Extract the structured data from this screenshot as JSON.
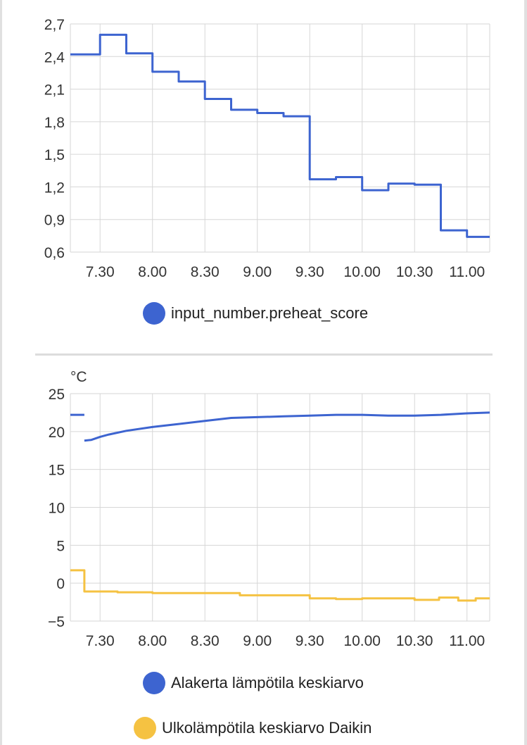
{
  "charts": [
    {
      "legend": [
        {
          "label": "input_number.preheat_score",
          "color": "#3d64d0"
        }
      ]
    },
    {
      "unit_label": "°C",
      "legend": [
        {
          "label": "Alakerta lämpötila keskiarvo",
          "color": "#3d64d0"
        },
        {
          "label": "Ulkolämpötila keskiarvo Daikin",
          "color": "#f5c242"
        }
      ]
    }
  ],
  "chart_data": [
    {
      "type": "line",
      "step": true,
      "xlabel": "",
      "ylabel": "",
      "x_ticks": [
        "7.30",
        "8.00",
        "8.30",
        "9.00",
        "9.30",
        "10.00",
        "10.30",
        "11.00"
      ],
      "y_ticks": [
        "0,6",
        "0,9",
        "1,2",
        "1,5",
        "1,8",
        "2,1",
        "2,4",
        "2,7"
      ],
      "xlim": [
        "07:13",
        "11:13"
      ],
      "ylim": [
        0.6,
        2.7
      ],
      "grid": true,
      "legend_position": "bottom",
      "series": [
        {
          "name": "input_number.preheat_score",
          "color": "#3d64d0",
          "x": [
            "07:13",
            "07:30",
            "07:45",
            "08:00",
            "08:15",
            "08:30",
            "08:45",
            "09:00",
            "09:15",
            "09:30",
            "09:45",
            "10:00",
            "10:15",
            "10:30",
            "10:45",
            "11:00",
            "11:13"
          ],
          "y": [
            2.42,
            2.6,
            2.43,
            2.26,
            2.17,
            2.01,
            1.91,
            1.88,
            1.85,
            1.27,
            1.29,
            1.17,
            1.23,
            1.22,
            0.8,
            0.74,
            0.74
          ]
        }
      ]
    },
    {
      "type": "line",
      "xlabel": "",
      "ylabel": "°C",
      "x_ticks": [
        "7.30",
        "8.00",
        "8.30",
        "9.00",
        "9.30",
        "10.00",
        "10.30",
        "11.00"
      ],
      "y_ticks": [
        "−5",
        "0",
        "5",
        "10",
        "15",
        "20",
        "25"
      ],
      "xlim": [
        "07:13",
        "11:13"
      ],
      "ylim": [
        -5,
        25
      ],
      "grid": true,
      "legend_position": "bottom",
      "series": [
        {
          "name": "Alakerta lämpötila keskiarvo",
          "color": "#3d64d0",
          "segments": [
            {
              "x": [
                "07:13",
                "07:21"
              ],
              "y": [
                22.2,
                22.2
              ]
            },
            {
              "x": [
                "07:21",
                "07:25",
                "07:30",
                "07:35",
                "07:45",
                "08:00",
                "08:15",
                "08:30",
                "08:45",
                "09:00",
                "09:15",
                "09:30",
                "09:45",
                "10:00",
                "10:15",
                "10:30",
                "10:45",
                "11:00",
                "11:13"
              ],
              "y": [
                18.8,
                18.9,
                19.3,
                19.6,
                20.1,
                20.6,
                21.0,
                21.4,
                21.8,
                21.9,
                22.0,
                22.1,
                22.2,
                22.2,
                22.1,
                22.1,
                22.2,
                22.4,
                22.5
              ]
            }
          ]
        },
        {
          "name": "Ulkolämpötila keskiarvo Daikin",
          "color": "#f5c242",
          "step": true,
          "x": [
            "07:13",
            "07:21",
            "07:40",
            "08:00",
            "08:50",
            "09:30",
            "09:45",
            "10:00",
            "10:30",
            "10:44",
            "10:55",
            "11:05",
            "11:13"
          ],
          "y": [
            1.7,
            -1.1,
            -1.2,
            -1.3,
            -1.6,
            -2.0,
            -2.1,
            -2.0,
            -2.2,
            -1.9,
            -2.3,
            -2.0,
            -2.0
          ]
        }
      ]
    }
  ]
}
